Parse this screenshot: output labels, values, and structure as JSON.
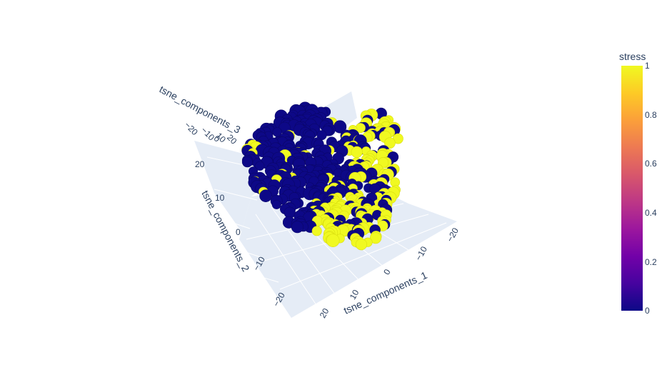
{
  "chart_data": {
    "type": "scatter",
    "dimensions": 3,
    "x_axis": {
      "title": "tsne_components_1",
      "ticks": [
        "−20",
        "−10",
        "0",
        "10",
        "20"
      ]
    },
    "y_axis": {
      "title": "tsne_components_2",
      "ticks": [
        "−20",
        "−10",
        "0",
        "10",
        "20"
      ]
    },
    "z_axis": {
      "title": "tsne_components_3",
      "ticks": [
        "−20",
        "−10",
        "0",
        "10",
        "20"
      ]
    },
    "colorbar": {
      "title": "stress",
      "range": [
        0,
        1
      ],
      "ticks": [
        "0",
        "0.2",
        "0.4",
        "0.6",
        "0.8",
        "1"
      ],
      "colorscale": [
        "#0d0887",
        "#46039f",
        "#7201a8",
        "#9c179e",
        "#bd3786",
        "#d8576b",
        "#ed7953",
        "#fb9f3a",
        "#fdca26",
        "#f0f921"
      ]
    },
    "clusters": [
      {
        "stress": 0,
        "color": "#0d0887",
        "region": "left"
      },
      {
        "stress": 1,
        "color": "#f0f921",
        "region": "right"
      }
    ],
    "background": {
      "plane_color": "#e5ecf6",
      "grid_color": "#ffffff"
    }
  }
}
